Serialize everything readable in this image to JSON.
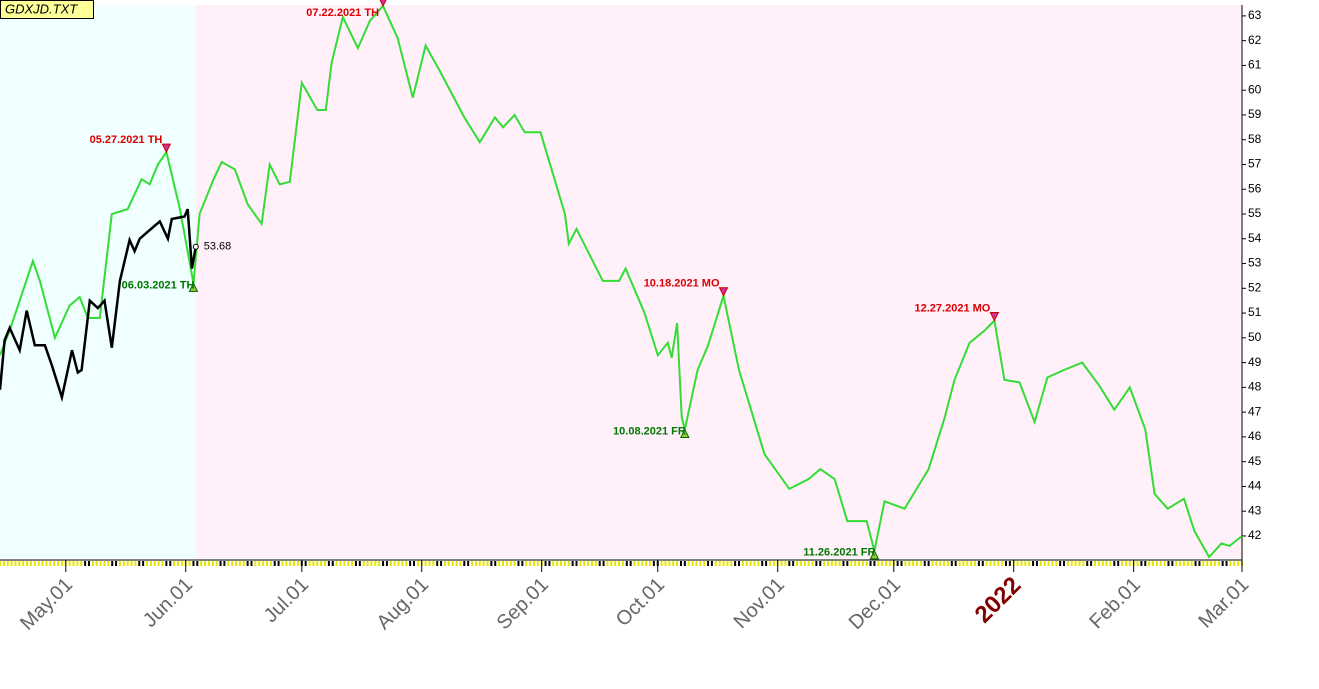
{
  "chart_data": {
    "type": "line",
    "title": "GDXJD.TXT",
    "xlim": [
      -17,
      304
    ],
    "ylim": [
      41.11,
      63.44
    ],
    "xticks": [
      {
        "value": 0,
        "label": "May.01"
      },
      {
        "value": 31,
        "label": "Jun.01"
      },
      {
        "value": 61,
        "label": "Jul.01"
      },
      {
        "value": 92,
        "label": "Aug.01"
      },
      {
        "value": 123,
        "label": "Sep.01"
      },
      {
        "value": 153,
        "label": "Oct.01"
      },
      {
        "value": 184,
        "label": "Nov.01"
      },
      {
        "value": 214,
        "label": "Dec.01"
      },
      {
        "value": 245,
        "label": "2022"
      },
      {
        "value": 276,
        "label": "Feb.01"
      },
      {
        "value": 304,
        "label": "Mar.01"
      }
    ],
    "yticks": [
      42,
      43,
      44,
      45,
      46,
      47,
      48,
      49,
      50,
      51,
      52,
      53,
      54,
      55,
      56,
      57,
      58,
      59,
      60,
      61,
      62,
      63
    ],
    "series": [
      {
        "color": "#33dd33",
        "x": [
          -17,
          -14.5,
          -11.9,
          -8.5,
          -6.7,
          -2.8,
          1,
          3.6,
          5.7,
          8.8,
          11.9,
          16,
          19.6,
          21.7,
          23.8,
          26,
          29.5,
          33,
          34.6,
          38.2,
          40.3,
          43.7,
          47,
          50.6,
          52.7,
          55.3,
          57.9,
          61,
          65,
          67.2,
          68.7,
          71.6,
          75.5,
          78.6,
          82,
          85.8,
          89.7,
          93,
          96.6,
          103,
          107,
          110.9,
          113,
          116,
          118.6,
          122.7,
          129,
          130,
          132,
          138.8,
          143,
          144.7,
          149.6,
          153,
          155.6,
          156.6,
          158,
          159.2,
          160,
          163.3,
          166,
          170,
          174,
          180.6,
          187,
          192,
          195,
          198.7,
          202,
          207,
          209,
          211.6,
          216.8,
          223,
          227,
          229.7,
          233.6,
          237.5,
          240,
          242.6,
          246.5,
          250.4,
          253.7,
          258,
          262.7,
          267,
          271,
          275,
          279,
          281.4,
          284.8,
          289,
          291.7,
          295.5,
          298.7,
          300.8,
          304
        ],
        "values": [
          49.3,
          50.3,
          51.5,
          53.1,
          52.3,
          50.0,
          51.3,
          51.65,
          50.8,
          50.8,
          55.0,
          55.2,
          56.4,
          56.2,
          57.0,
          57.5,
          55.2,
          52.2,
          55.0,
          56.4,
          57.1,
          56.8,
          55.4,
          54.6,
          57.0,
          56.2,
          56.3,
          60.3,
          59.2,
          59.2,
          61.1,
          62.95,
          61.7,
          62.8,
          63.4,
          62.1,
          59.7,
          61.8,
          60.8,
          58.9,
          57.9,
          58.9,
          58.5,
          59.0,
          58.3,
          58.3,
          55.0,
          53.8,
          54.4,
          52.3,
          52.3,
          52.8,
          51.0,
          49.3,
          49.8,
          49.2,
          50.6,
          46.8,
          46.3,
          48.7,
          49.7,
          51.7,
          48.7,
          45.3,
          43.9,
          44.3,
          44.7,
          44.3,
          42.6,
          42.6,
          41.4,
          43.4,
          43.1,
          44.7,
          46.7,
          48.3,
          49.8,
          50.3,
          50.7,
          48.3,
          48.2,
          46.6,
          48.4,
          48.7,
          49.0,
          48.1,
          47.1,
          48.0,
          46.3,
          43.7,
          43.1,
          43.5,
          42.2,
          41.15,
          41.7,
          41.6,
          42.0
        ]
      },
      {
        "color": "#000000",
        "x": [
          -17,
          -15.8,
          -14.5,
          -11.9,
          -10.1,
          -8,
          -5.4,
          -3.6,
          -1,
          1.6,
          3.1,
          4.1,
          6.2,
          8.3,
          10,
          11.9,
          14,
          16.5,
          17.8,
          19.1,
          21.7,
          24.3,
          26.4,
          27.4,
          30.7,
          31.5,
          32.6,
          33.6
        ],
        "values": [
          47.9,
          49.9,
          50.4,
          49.5,
          51.1,
          49.7,
          49.7,
          48.9,
          47.6,
          49.5,
          48.6,
          48.7,
          51.5,
          51.2,
          51.5,
          49.6,
          52.3,
          53.95,
          53.5,
          54.0,
          54.35,
          54.7,
          54.0,
          54.8,
          54.9,
          55.2,
          52.8,
          53.68
        ]
      }
    ],
    "annotations": [
      {
        "label": "05.27.2021 TH",
        "x": 26,
        "y": 57.5,
        "kind": "peak"
      },
      {
        "label": "06.03.2021 TH",
        "x": 33,
        "y": 52.2,
        "kind": "trough"
      },
      {
        "label": "07.22.2021 TH",
        "x": 82,
        "y": 63.4,
        "kind": "peak"
      },
      {
        "label": "10.08.2021 FR",
        "x": 160,
        "y": 46.3,
        "kind": "trough"
      },
      {
        "label": "10.18.2021 MO",
        "x": 170,
        "y": 51.7,
        "kind": "peak"
      },
      {
        "label": "11.26.2021 FR",
        "x": 209,
        "y": 41.4,
        "kind": "trough"
      },
      {
        "label": "12.27.2021 MO",
        "x": 240,
        "y": 50.7,
        "kind": "peak"
      }
    ]
  }
}
